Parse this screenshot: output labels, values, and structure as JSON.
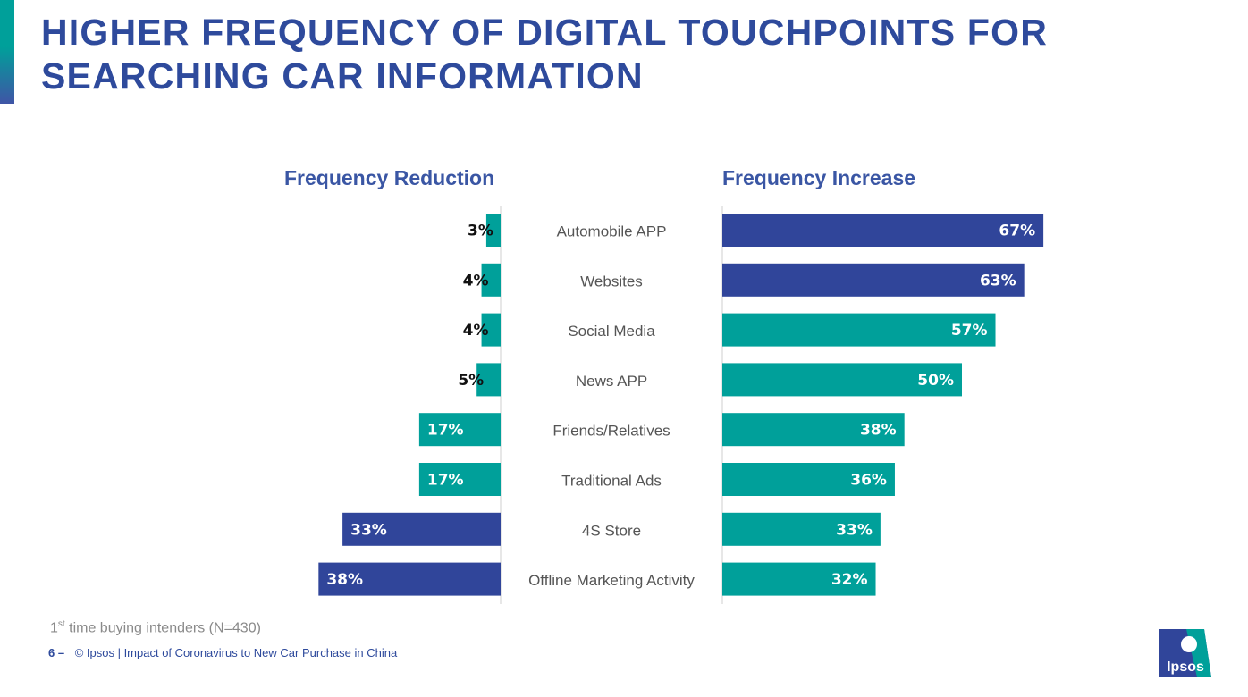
{
  "page": {
    "title_line1": "HIGHER FREQUENCY OF DIGITAL TOUCHPOINTS FOR",
    "title_line2": "SEARCHING CAR INFORMATION",
    "footnote_sup": "st",
    "footnote_rest": " time buying intenders (N=430)",
    "footnote_num": "1",
    "page_number": "6 –",
    "footer_text": "© Ipsos | Impact of Coronavirus to New Car Purchase in China",
    "logo_text": "Ipsos"
  },
  "colors": {
    "teal": "#00a09a",
    "navy": "#30459a",
    "title": "#2e4a9c",
    "category_text": "#555555"
  },
  "chart_data": {
    "type": "bar",
    "orientation": "horizontal-diverging",
    "categories": [
      "Automobile APP",
      "Websites",
      "Social Media",
      "News APP",
      "Friends/Relatives",
      "Traditional Ads",
      "4S Store",
      "Offline Marketing Activity"
    ],
    "series": [
      {
        "name": "Frequency Reduction",
        "values": [
          3,
          4,
          4,
          5,
          17,
          17,
          33,
          38
        ],
        "labels": [
          "3%",
          "4%",
          "4%",
          "5%",
          "17%",
          "17%",
          "33%",
          "38%"
        ],
        "highlight": [
          false,
          false,
          false,
          false,
          false,
          false,
          true,
          true
        ]
      },
      {
        "name": "Frequency Increase",
        "values": [
          67,
          63,
          57,
          50,
          38,
          36,
          33,
          32
        ],
        "labels": [
          "67%",
          "63%",
          "57%",
          "50%",
          "38%",
          "36%",
          "33%",
          "32%"
        ],
        "highlight": [
          true,
          true,
          false,
          false,
          false,
          false,
          false,
          false
        ]
      }
    ],
    "unit": "%",
    "title": "",
    "xlabel": "",
    "ylabel": ""
  }
}
